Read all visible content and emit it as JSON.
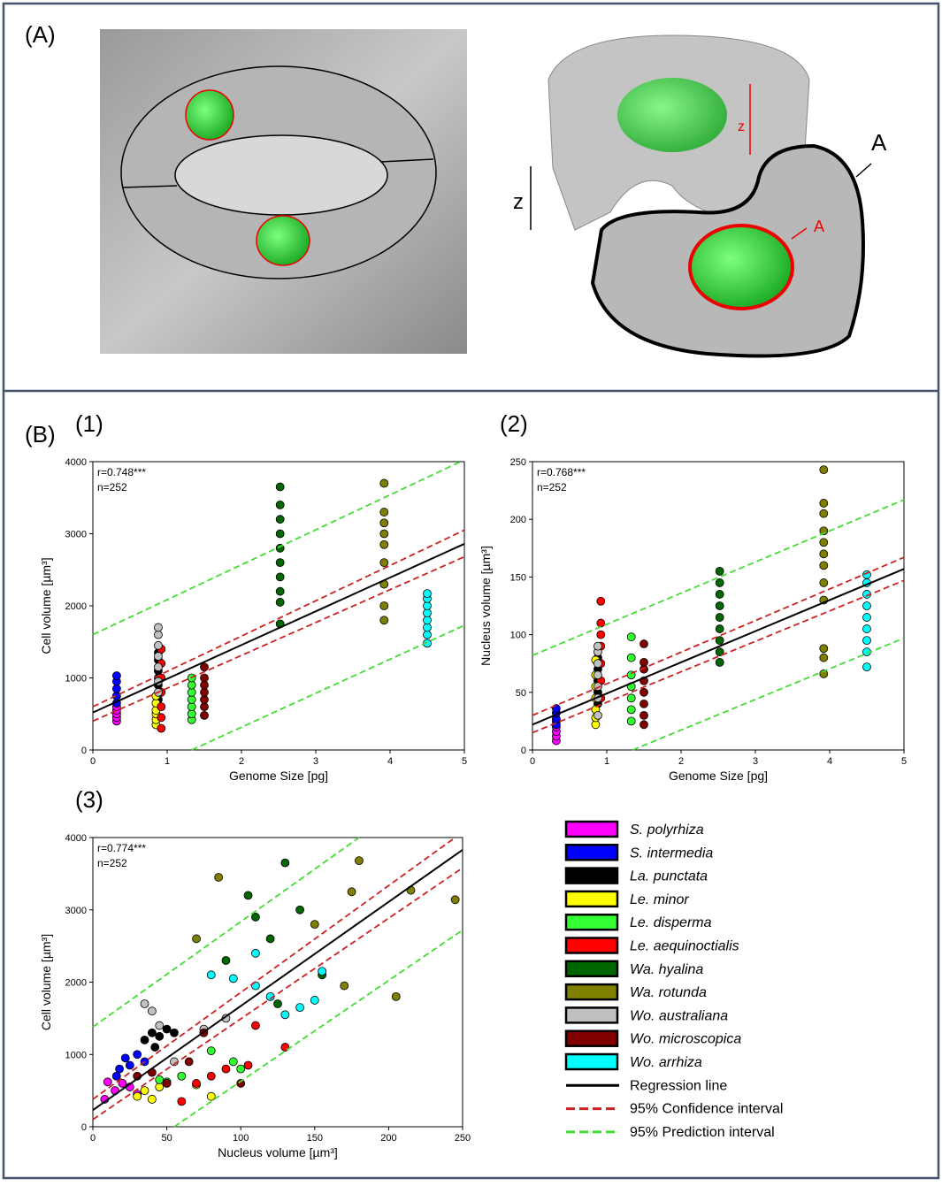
{
  "panel_labels": [
    "(A)",
    "(B)"
  ],
  "diagram_labels": [
    "z",
    "A",
    "z",
    "A"
  ],
  "chart_data": [
    {
      "type": "scatter",
      "label": "(1)",
      "annotations": [
        "r=0.748***",
        "n=252"
      ],
      "xlabel": "Genome Size [pg]",
      "ylabel": "Cell volume [µm³]",
      "xlim": [
        0,
        5
      ],
      "ylim": [
        0,
        4000
      ],
      "xticks": [
        0,
        1,
        2,
        3,
        4,
        5
      ],
      "yticks": [
        0,
        1000,
        2000,
        3000,
        4000
      ],
      "series": [
        {
          "name": "S. polyrhiza",
          "color": "#ff00ff",
          "x": [
            0.32,
            0.32,
            0.32,
            0.32,
            0.32
          ],
          "values": [
            400,
            450,
            500,
            550,
            600
          ]
        },
        {
          "name": "S. intermedia",
          "color": "#0000ff",
          "x": [
            0.32,
            0.32,
            0.32,
            0.32,
            0.32
          ],
          "values": [
            650,
            750,
            850,
            950,
            1030
          ]
        },
        {
          "name": "La. punctata",
          "color": "#000000",
          "x": [
            0.88,
            0.88,
            0.88,
            0.88,
            0.88,
            0.88
          ],
          "values": [
            700,
            900,
            1000,
            1100,
            1250,
            1350
          ]
        },
        {
          "name": "Le. minor",
          "color": "#ffff00",
          "x": [
            0.85,
            0.85,
            0.85,
            0.85,
            0.85,
            0.85
          ],
          "values": [
            350,
            420,
            500,
            550,
            650,
            750
          ]
        },
        {
          "name": "Le. disperma",
          "color": "#33ff33",
          "x": [
            1.33,
            1.33,
            1.33,
            1.33,
            1.33,
            1.33,
            1.33
          ],
          "values": [
            420,
            500,
            600,
            700,
            800,
            900,
            1000
          ]
        },
        {
          "name": "Le. aequinoctialis",
          "color": "#ff0000",
          "x": [
            0.92,
            0.92,
            0.92,
            0.92,
            0.92,
            0.92,
            0.92
          ],
          "values": [
            300,
            450,
            600,
            800,
            1000,
            1200,
            1400
          ]
        },
        {
          "name": "Wa. hyalina",
          "color": "#006600",
          "x": [
            2.52,
            2.52,
            2.52,
            2.52,
            2.52,
            2.52,
            2.52,
            2.52,
            2.52,
            2.52
          ],
          "values": [
            1750,
            2050,
            2200,
            2400,
            2600,
            2800,
            3000,
            3200,
            3400,
            3650
          ]
        },
        {
          "name": "Wa. rotunda",
          "color": "#808000",
          "x": [
            3.92,
            3.92,
            3.92,
            3.92,
            3.92,
            3.92,
            3.92,
            3.92,
            3.92
          ],
          "values": [
            1800,
            2000,
            2300,
            2600,
            2850,
            3000,
            3150,
            3300,
            3700
          ]
        },
        {
          "name": "Wo. australiana",
          "color": "#c0c0c0",
          "x": [
            0.88,
            0.88,
            0.88,
            0.88,
            0.88,
            0.88,
            0.88
          ],
          "values": [
            800,
            950,
            1150,
            1300,
            1450,
            1600,
            1700
          ]
        },
        {
          "name": "Wo. microscopica",
          "color": "#800000",
          "x": [
            1.5,
            1.5,
            1.5,
            1.5,
            1.5,
            1.5,
            1.5
          ],
          "values": [
            480,
            600,
            700,
            800,
            900,
            1000,
            1150
          ]
        },
        {
          "name": "Wo. arrhiza",
          "color": "#00ffff",
          "x": [
            4.5,
            4.5,
            4.5,
            4.5,
            4.5,
            4.5,
            4.5,
            4.5
          ],
          "values": [
            1480,
            1600,
            1700,
            1800,
            1900,
            2000,
            2100,
            2170
          ]
        }
      ],
      "lines": [
        {
          "name": "Regression line",
          "color": "#000000",
          "style": "solid",
          "x": [
            0,
            5
          ],
          "values": [
            520,
            2860
          ]
        },
        {
          "name": "95% Confidence interval",
          "color": "#cc2222",
          "style": "dashed",
          "x": [
            0,
            5
          ],
          "values": [
            600,
            3050
          ]
        },
        {
          "color": "#cc2222",
          "style": "dashed",
          "x": [
            0,
            5
          ],
          "values": [
            400,
            2680
          ]
        },
        {
          "name": "95% Prediction interval",
          "color": "#44dd33",
          "style": "dashed",
          "x": [
            0,
            4.95
          ],
          "values": [
            1600,
            4000
          ]
        },
        {
          "color": "#44dd33",
          "style": "dashed",
          "x": [
            1.33,
            5
          ],
          "values": [
            0,
            1730
          ]
        }
      ]
    },
    {
      "type": "scatter",
      "label": "(2)",
      "annotations": [
        "r=0.768***",
        "n=252"
      ],
      "xlabel": "Genome Size [pg]",
      "ylabel": "Nucleus volume [µm³]",
      "xlim": [
        0,
        5
      ],
      "ylim": [
        0,
        250
      ],
      "xticks": [
        0,
        1,
        2,
        3,
        4,
        5
      ],
      "yticks": [
        0,
        50,
        100,
        150,
        200,
        250
      ],
      "series": [
        {
          "name": "S. polyrhiza",
          "color": "#ff00ff",
          "x": [
            0.32,
            0.32,
            0.32,
            0.32,
            0.32
          ],
          "values": [
            8,
            12,
            16,
            20,
            25
          ]
        },
        {
          "name": "S. intermedia",
          "color": "#0000ff",
          "x": [
            0.32,
            0.32,
            0.32,
            0.32
          ],
          "values": [
            22,
            27,
            32,
            36
          ]
        },
        {
          "name": "La. punctata",
          "color": "#000000",
          "x": [
            0.88,
            0.88,
            0.88,
            0.88,
            0.88
          ],
          "values": [
            40,
            50,
            60,
            70,
            80
          ]
        },
        {
          "name": "Le. minor",
          "color": "#ffff00",
          "x": [
            0.85,
            0.85,
            0.85,
            0.85,
            0.85,
            0.85,
            0.85
          ],
          "values": [
            22,
            28,
            35,
            45,
            55,
            65,
            78
          ]
        },
        {
          "name": "Le. disperma",
          "color": "#33ff33",
          "x": [
            1.33,
            1.33,
            1.33,
            1.33,
            1.33,
            1.33,
            1.33
          ],
          "values": [
            25,
            35,
            45,
            55,
            65,
            80,
            98
          ]
        },
        {
          "name": "Le. aequinoctialis",
          "color": "#ff0000",
          "x": [
            0.92,
            0.92,
            0.92,
            0.92,
            0.92,
            0.92,
            0.92
          ],
          "values": [
            45,
            60,
            75,
            90,
            100,
            110,
            129
          ]
        },
        {
          "name": "Wa. hyalina",
          "color": "#006600",
          "x": [
            2.52,
            2.52,
            2.52,
            2.52,
            2.52,
            2.52,
            2.52,
            2.52,
            2.52
          ],
          "values": [
            76,
            85,
            95,
            105,
            115,
            125,
            135,
            145,
            155
          ]
        },
        {
          "name": "Wa. rotunda",
          "color": "#808000",
          "x": [
            3.92,
            3.92,
            3.92,
            3.92,
            3.92,
            3.92,
            3.92,
            3.92,
            3.92,
            3.92,
            3.92,
            3.92
          ],
          "values": [
            66,
            80,
            88,
            130,
            145,
            160,
            170,
            180,
            190,
            205,
            214,
            243
          ]
        },
        {
          "name": "Wo. australiana",
          "color": "#c0c0c0",
          "x": [
            0.88,
            0.88,
            0.88,
            0.88,
            0.88,
            0.88,
            0.88
          ],
          "values": [
            30,
            45,
            55,
            65,
            75,
            85,
            90
          ]
        },
        {
          "name": "Wo. microscopica",
          "color": "#800000",
          "x": [
            1.5,
            1.5,
            1.5,
            1.5,
            1.5,
            1.5,
            1.5,
            1.5
          ],
          "values": [
            22,
            30,
            40,
            50,
            60,
            70,
            76,
            92
          ]
        },
        {
          "name": "Wo. arrhiza",
          "color": "#00ffff",
          "x": [
            4.5,
            4.5,
            4.5,
            4.5,
            4.5,
            4.5,
            4.5,
            4.5,
            4.5
          ],
          "values": [
            72,
            85,
            95,
            105,
            115,
            125,
            135,
            145,
            152
          ]
        }
      ],
      "lines": [
        {
          "color": "#000000",
          "style": "solid",
          "x": [
            0,
            5
          ],
          "values": [
            22,
            157
          ]
        },
        {
          "color": "#cc2222",
          "style": "dashed",
          "x": [
            0,
            5
          ],
          "values": [
            30,
            167
          ]
        },
        {
          "color": "#cc2222",
          "style": "dashed",
          "x": [
            0,
            5
          ],
          "values": [
            15,
            147
          ]
        },
        {
          "color": "#44dd33",
          "style": "dashed",
          "x": [
            0,
            5
          ],
          "values": [
            82,
            217
          ]
        },
        {
          "color": "#44dd33",
          "style": "dashed",
          "x": [
            1.35,
            5
          ],
          "values": [
            0,
            97
          ]
        }
      ]
    },
    {
      "type": "scatter",
      "label": "(3)",
      "annotations": [
        "r=0.774***",
        "n=252"
      ],
      "xlabel": "Nucleus volume [µm³]",
      "ylabel": "Cell volume [µm³]",
      "xlim": [
        0,
        250
      ],
      "ylim": [
        0,
        4000
      ],
      "xticks": [
        0,
        50,
        100,
        150,
        200,
        250
      ],
      "yticks": [
        0,
        1000,
        2000,
        3000,
        4000
      ],
      "series": [
        {
          "name": "S. polyrhiza",
          "color": "#ff00ff",
          "x": [
            10,
            15,
            20,
            25,
            30,
            8
          ],
          "values": [
            620,
            500,
            600,
            550,
            450,
            380
          ]
        },
        {
          "name": "S. intermedia",
          "color": "#0000ff",
          "x": [
            18,
            22,
            25,
            30,
            35,
            16
          ],
          "values": [
            800,
            950,
            850,
            1000,
            900,
            700
          ]
        },
        {
          "name": "La. punctata",
          "color": "#000000",
          "x": [
            35,
            40,
            45,
            50,
            42,
            55
          ],
          "values": [
            1200,
            1300,
            1250,
            1350,
            1100,
            1300
          ]
        },
        {
          "name": "Le. minor",
          "color": "#ffff00",
          "x": [
            30,
            35,
            40,
            45,
            70,
            80
          ],
          "values": [
            420,
            500,
            380,
            550,
            580,
            420
          ]
        },
        {
          "name": "Le. disperma",
          "color": "#33ff33",
          "x": [
            50,
            60,
            80,
            95,
            100,
            45
          ],
          "values": [
            620,
            700,
            1050,
            900,
            800,
            650
          ]
        },
        {
          "name": "Le. aequinoctialis",
          "color": "#ff0000",
          "x": [
            60,
            70,
            80,
            90,
            105,
            130,
            110
          ],
          "values": [
            350,
            600,
            700,
            800,
            850,
            1100,
            1400
          ]
        },
        {
          "name": "Wa. hyalina",
          "color": "#006600",
          "x": [
            90,
            105,
            110,
            120,
            130,
            140,
            155,
            125
          ],
          "values": [
            2300,
            3200,
            2900,
            2600,
            3650,
            3000,
            2100,
            1700
          ]
        },
        {
          "name": "Wa. rotunda",
          "color": "#808000",
          "x": [
            70,
            85,
            150,
            175,
            180,
            205,
            215,
            245,
            170
          ],
          "values": [
            2600,
            3450,
            2800,
            3250,
            3680,
            1800,
            3270,
            3140,
            1950
          ]
        },
        {
          "name": "Wo. australiana",
          "color": "#c0c0c0",
          "x": [
            35,
            40,
            45,
            55,
            75,
            90
          ],
          "values": [
            1700,
            1600,
            1400,
            900,
            1350,
            1500
          ]
        },
        {
          "name": "Wo. microscopica",
          "color": "#800000",
          "x": [
            40,
            50,
            65,
            75,
            100,
            30
          ],
          "values": [
            750,
            600,
            900,
            1300,
            600,
            700
          ]
        },
        {
          "name": "Wo. arrhiza",
          "color": "#00ffff",
          "x": [
            80,
            95,
            110,
            120,
            140,
            150,
            155,
            110,
            130
          ],
          "values": [
            2100,
            2050,
            1950,
            1800,
            1650,
            1750,
            2150,
            2400,
            1550
          ]
        }
      ],
      "lines": [
        {
          "color": "#000000",
          "style": "solid",
          "x": [
            0,
            250
          ],
          "values": [
            230,
            3830
          ]
        },
        {
          "color": "#cc2222",
          "style": "dashed",
          "x": [
            0,
            245
          ],
          "values": [
            380,
            4000
          ]
        },
        {
          "color": "#cc2222",
          "style": "dashed",
          "x": [
            0,
            250
          ],
          "values": [
            100,
            3580
          ]
        },
        {
          "color": "#44dd33",
          "style": "dashed",
          "x": [
            0,
            180
          ],
          "values": [
            1380,
            4000
          ]
        },
        {
          "color": "#44dd33",
          "style": "dashed",
          "x": [
            55,
            250
          ],
          "values": [
            0,
            2720
          ]
        }
      ]
    }
  ]
}
